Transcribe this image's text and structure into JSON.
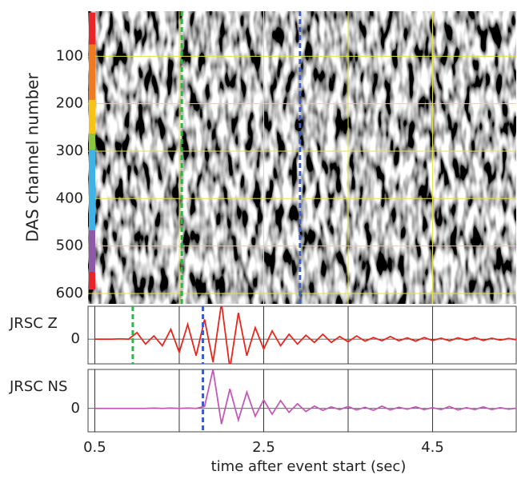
{
  "chart_data": [
    {
      "type": "heatmap",
      "ylabel": "DAS channel number",
      "ylim": [
        622,
        5
      ],
      "yticks": [
        100,
        200,
        300,
        400,
        500,
        600
      ],
      "xlim": [
        0.42,
        5.49
      ],
      "x_gridlines": [
        1.5,
        2.5,
        3.5,
        4.5
      ],
      "grid_color": "#e8e04a",
      "markers": [
        {
          "x": 1.53,
          "color": "#2db34a"
        },
        {
          "x": 2.93,
          "color": "#3a5fc8"
        }
      ],
      "channel_groups": [
        {
          "start": 8,
          "end": 75,
          "color": "#e8262a"
        },
        {
          "start": 75,
          "end": 192,
          "color": "#f07a22"
        },
        {
          "start": 192,
          "end": 263,
          "color": "#f7c316"
        },
        {
          "start": 263,
          "end": 297,
          "color": "#8cc63f"
        },
        {
          "start": 297,
          "end": 467,
          "color": "#3fb3e6"
        },
        {
          "start": 467,
          "end": 555,
          "color": "#8e5aa8"
        },
        {
          "start": 555,
          "end": 592,
          "color": "#e8262a"
        }
      ]
    },
    {
      "type": "line",
      "ylabel": "JRSC Z",
      "ylim": [
        -0.75,
        1
      ],
      "yticks": [
        0
      ],
      "xlim": [
        0.42,
        5.49
      ],
      "x_gridlines": [
        0.5,
        1.5,
        2.5,
        3.5,
        4.5
      ],
      "markers": [
        {
          "x": 0.95,
          "color": "#2db34a"
        },
        {
          "x": 1.78,
          "color": "#3a5fc8"
        }
      ],
      "x": [
        0.5,
        0.6,
        0.7,
        0.8,
        0.9,
        1.0,
        1.1,
        1.2,
        1.3,
        1.4,
        1.5,
        1.6,
        1.7,
        1.8,
        1.9,
        2.0,
        2.1,
        2.2,
        2.3,
        2.4,
        2.5,
        2.6,
        2.7,
        2.8,
        2.9,
        3.0,
        3.1,
        3.2,
        3.3,
        3.4,
        3.5,
        3.6,
        3.7,
        3.8,
        3.9,
        4.0,
        4.1,
        4.2,
        4.3,
        4.4,
        4.5,
        4.6,
        4.7,
        4.8,
        4.9,
        5.0,
        5.1,
        5.2,
        5.3,
        5.4,
        5.5
      ],
      "color": "#e8261c",
      "values": [
        0,
        0,
        0,
        0.01,
        0,
        0.2,
        -0.15,
        0.1,
        -0.2,
        0.3,
        -0.4,
        0.45,
        -0.5,
        0.6,
        -0.7,
        1.1,
        -0.9,
        0.8,
        -0.5,
        0.35,
        -0.3,
        0.25,
        -0.2,
        0.15,
        -0.15,
        0.12,
        -0.1,
        0.15,
        -0.1,
        0.08,
        -0.08,
        0.1,
        -0.06,
        0.05,
        -0.05,
        0.08,
        -0.05,
        0.04,
        -0.06,
        0.05,
        -0.04,
        0.03,
        -0.05,
        0.04,
        -0.03,
        0.05,
        -0.04,
        0.03,
        -0.03,
        0.02,
        -0.02
      ]
    },
    {
      "type": "line",
      "ylabel": "JRSC NS",
      "ylim": [
        -0.6,
        1
      ],
      "yticks": [
        0
      ],
      "xlim": [
        0.42,
        5.49
      ],
      "x_gridlines": [
        0.5,
        1.5,
        2.5,
        3.5,
        4.5
      ],
      "xticks": [
        0.5,
        2.5,
        4.5
      ],
      "xlabel": "time after event start (sec)",
      "markers": [
        {
          "x": 1.78,
          "color": "#3a5fc8"
        }
      ],
      "x": [
        0.5,
        0.6,
        0.7,
        0.8,
        0.9,
        1.0,
        1.1,
        1.2,
        1.3,
        1.4,
        1.5,
        1.6,
        1.7,
        1.8,
        1.9,
        2.0,
        2.1,
        2.2,
        2.3,
        2.4,
        2.5,
        2.6,
        2.7,
        2.8,
        2.9,
        3.0,
        3.1,
        3.2,
        3.3,
        3.4,
        3.5,
        3.6,
        3.7,
        3.8,
        3.9,
        4.0,
        4.1,
        4.2,
        4.3,
        4.4,
        4.5,
        4.6,
        4.7,
        4.8,
        4.9,
        5.0,
        5.1,
        5.2,
        5.3,
        5.4,
        5.5
      ],
      "color": "#c45ab8",
      "values": [
        0,
        0,
        0,
        0,
        0,
        0,
        0,
        0.01,
        0,
        0.01,
        0,
        0.01,
        0,
        0.05,
        1.0,
        -0.4,
        0.5,
        -0.3,
        0.42,
        -0.2,
        0.22,
        -0.15,
        0.2,
        -0.1,
        0.12,
        -0.08,
        0.06,
        -0.05,
        0.04,
        -0.03,
        0.05,
        -0.04,
        0.03,
        -0.05,
        0.06,
        -0.04,
        0.03,
        -0.02,
        0.04,
        -0.03,
        0.02,
        -0.03,
        0.05,
        -0.04,
        0.02,
        -0.03,
        0.04,
        -0.03,
        0.02,
        -0.02,
        0.01
      ]
    }
  ]
}
